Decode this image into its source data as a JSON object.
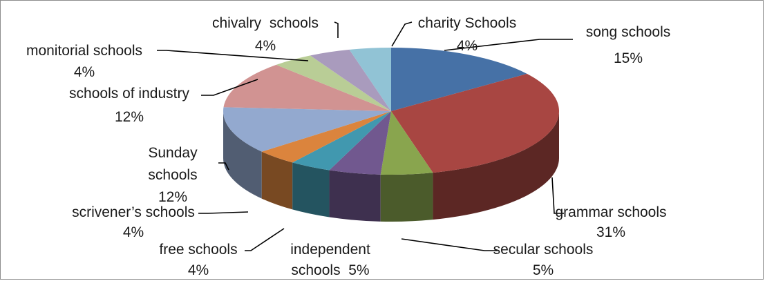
{
  "chart_data": {
    "type": "pie",
    "style": "3d",
    "start_angle_deg": 90,
    "direction": "clockwise",
    "slices": [
      {
        "label": "song schools",
        "value_label": "15%",
        "value": 15,
        "color": "#4671a6"
      },
      {
        "label": "grammar schools",
        "value_label": "31%",
        "value": 31,
        "color": "#a84642"
      },
      {
        "label": "secular schools",
        "value_label": "5%",
        "value": 5,
        "color": "#89a54e"
      },
      {
        "label": "independent schools",
        "label_lines": [
          "independent",
          "schools  5%"
        ],
        "value_label": "5%",
        "value": 5,
        "color": "#71588f"
      },
      {
        "label": "free schools",
        "value_label": "4%",
        "value": 4,
        "color": "#4198af"
      },
      {
        "label": "scrivener’s schools",
        "value_label": "4%",
        "value": 4,
        "color": "#db843d"
      },
      {
        "label": "Sunday schools",
        "label_lines": [
          "Sunday",
          "schools",
          "12%"
        ],
        "value_label": "12%",
        "value": 12,
        "color": "#93a9cf"
      },
      {
        "label": "schools of industry",
        "value_label": "12%",
        "value": 12,
        "color": "#d19392"
      },
      {
        "label": "monitorial schools",
        "value_label": "4%",
        "value": 4,
        "color": "#b9cd96"
      },
      {
        "label": "chivalry  schools",
        "value_label": "4%",
        "value": 4,
        "color": "#a99bbd"
      },
      {
        "label": "charity Schools",
        "value_label": "4%",
        "value": 4,
        "color": "#91c3d5"
      }
    ]
  }
}
